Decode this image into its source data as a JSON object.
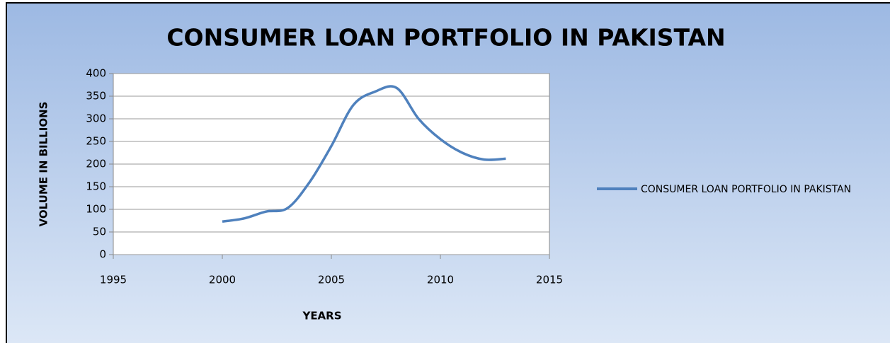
{
  "chart_data": {
    "type": "line",
    "title": "CONSUMER LOAN PORTFOLIO IN PAKISTAN",
    "x_label": "YEARS",
    "y_label": "VOLUME IN BILLIONS",
    "x": [
      2000,
      2001,
      2002,
      2003,
      2004,
      2005,
      2006,
      2007,
      2008,
      2009,
      2010,
      2011,
      2012,
      2013
    ],
    "series": [
      {
        "name": "CONSUMER LOAN PORTFOLIO IN PAKISTAN",
        "color": "#4f81bd",
        "values": [
          73,
          80,
          95,
          103,
          160,
          240,
          330,
          360,
          368,
          300,
          255,
          225,
          210,
          212
        ]
      }
    ],
    "xlim": [
      1995,
      2015
    ],
    "xticks": [
      1995,
      2000,
      2005,
      2010,
      2015
    ],
    "ylim": [
      0,
      400
    ],
    "yticks": [
      0,
      50,
      100,
      150,
      200,
      250,
      300,
      350,
      400
    ],
    "grid": true,
    "legend": "right"
  }
}
